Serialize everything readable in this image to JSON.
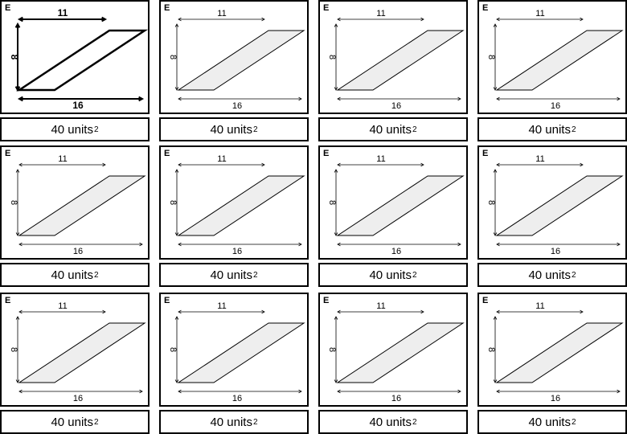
{
  "cards": [
    {
      "letter": "E",
      "top": "11",
      "side": "8",
      "bottom": "16",
      "answer_value": "40 units",
      "answer_power": "2",
      "emphasized": true
    },
    {
      "letter": "E",
      "top": "11",
      "side": "8",
      "bottom": "16",
      "answer_value": "40 units",
      "answer_power": "2",
      "emphasized": false
    },
    {
      "letter": "E",
      "top": "11",
      "side": "8",
      "bottom": "16",
      "answer_value": "40 units",
      "answer_power": "2",
      "emphasized": false
    },
    {
      "letter": "E",
      "top": "11",
      "side": "8",
      "bottom": "16",
      "answer_value": "40 units",
      "answer_power": "2",
      "emphasized": false
    },
    {
      "letter": "E",
      "top": "11",
      "side": "8",
      "bottom": "16",
      "answer_value": "40 units",
      "answer_power": "2",
      "emphasized": false
    },
    {
      "letter": "E",
      "top": "11",
      "side": "8",
      "bottom": "16",
      "answer_value": "40 units",
      "answer_power": "2",
      "emphasized": false
    },
    {
      "letter": "E",
      "top": "11",
      "side": "8",
      "bottom": "16",
      "answer_value": "40 units",
      "answer_power": "2",
      "emphasized": false
    },
    {
      "letter": "E",
      "top": "11",
      "side": "8",
      "bottom": "16",
      "answer_value": "40 units",
      "answer_power": "2",
      "emphasized": false
    },
    {
      "letter": "E",
      "top": "11",
      "side": "8",
      "bottom": "16",
      "answer_value": "40 units",
      "answer_power": "2",
      "emphasized": false
    },
    {
      "letter": "E",
      "top": "11",
      "side": "8",
      "bottom": "16",
      "answer_value": "40 units",
      "answer_power": "2",
      "emphasized": false
    },
    {
      "letter": "E",
      "top": "11",
      "side": "8",
      "bottom": "16",
      "answer_value": "40 units",
      "answer_power": "2",
      "emphasized": false
    },
    {
      "letter": "E",
      "top": "11",
      "side": "8",
      "bottom": "16",
      "answer_value": "40 units",
      "answer_power": "2",
      "emphasized": false
    }
  ],
  "colors": {
    "shape_fill": "#eeeeee",
    "stroke": "#000000"
  }
}
